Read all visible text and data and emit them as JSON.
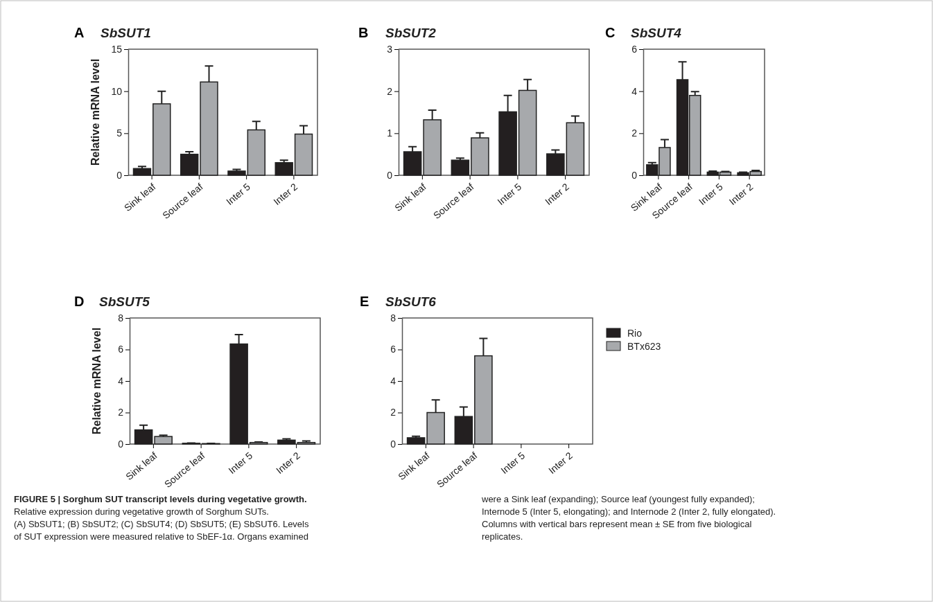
{
  "chart_data": [
    {
      "type": "bar",
      "title": "SbSUT1",
      "ylabel": "Relative mRNA level",
      "annotations": [
        "A"
      ],
      "categories": [
        "Sink leaf",
        "Source leaf",
        "Inter 5",
        "Inter 2"
      ],
      "ylim": [
        0,
        15
      ],
      "yticks": [
        0,
        5,
        10,
        15
      ],
      "grid": false,
      "legend": false,
      "series": [
        {
          "color": "#231f20",
          "values": [
            0.8,
            2.5,
            0.5,
            1.5
          ],
          "errors": [
            0.25,
            0.3,
            0.2,
            0.3
          ]
        },
        {
          "color": "#a7a9ac",
          "values": [
            8.5,
            11.1,
            5.4,
            4.9
          ],
          "errors": [
            1.5,
            1.9,
            1.0,
            1.0
          ]
        }
      ]
    },
    {
      "type": "bar",
      "title": "SbSUT2",
      "annotations": [
        "B"
      ],
      "categories": [
        "Sink leaf",
        "Source leaf",
        "Inter 5",
        "Inter 2"
      ],
      "ylim": [
        0,
        3
      ],
      "yticks": [
        0,
        1,
        2,
        3
      ],
      "grid": false,
      "legend": false,
      "series": [
        {
          "color": "#231f20",
          "values": [
            0.56,
            0.36,
            1.51,
            0.51
          ],
          "errors": [
            0.12,
            0.05,
            0.39,
            0.09
          ]
        },
        {
          "color": "#a7a9ac",
          "values": [
            1.32,
            0.89,
            2.02,
            1.25
          ],
          "errors": [
            0.23,
            0.12,
            0.26,
            0.16
          ]
        }
      ]
    },
    {
      "type": "bar",
      "title": "SbSUT4",
      "annotations": [
        "C"
      ],
      "categories": [
        "Sink leaf",
        "Source leaf",
        "Inter 5",
        "Inter 2"
      ],
      "ylim": [
        0,
        6
      ],
      "yticks": [
        0,
        2,
        4,
        6
      ],
      "grid": false,
      "legend": false,
      "series": [
        {
          "color": "#231f20",
          "values": [
            0.5,
            4.55,
            0.15,
            0.12
          ],
          "errors": [
            0.1,
            0.85,
            0.05,
            0.03
          ]
        },
        {
          "color": "#a7a9ac",
          "values": [
            1.32,
            3.8,
            0.15,
            0.18
          ],
          "errors": [
            0.38,
            0.18,
            0.03,
            0.05
          ]
        }
      ]
    },
    {
      "type": "bar",
      "title": "SbSUT5",
      "ylabel": "Relative mRNA level",
      "annotations": [
        "D"
      ],
      "categories": [
        "Sink leaf",
        "Source leaf",
        "Inter 5",
        "Inter 2"
      ],
      "ylim": [
        0,
        8
      ],
      "yticks": [
        0,
        2,
        4,
        6,
        8
      ],
      "grid": false,
      "legend": false,
      "series": [
        {
          "color": "#231f20",
          "values": [
            0.9,
            0.05,
            6.35,
            0.25
          ],
          "errors": [
            0.3,
            0.02,
            0.6,
            0.08
          ]
        },
        {
          "color": "#a7a9ac",
          "values": [
            0.48,
            0.03,
            0.1,
            0.1
          ],
          "errors": [
            0.08,
            0.01,
            0.03,
            0.1
          ]
        }
      ]
    },
    {
      "type": "bar",
      "title": "SbSUT6",
      "annotations": [
        "E",
        "FIGURE 5 | Sorghum SUT transcript levels during vegetative growth.",
        "Relative expression during vegetative growth of Sorghum SUTs.",
        "(A) SbSUT1; (B) SbSUT2; (C) SbSUT4; (D) SbSUT5; (E) SbSUT6. Levels",
        "of SUT expression were measured relative to SbEF-1α. Organs examined",
        "were a Sink leaf (expanding); Source leaf (youngest fully expanded);",
        "Internode 5 (Inter 5, elongating); and Internode 2 (Inter 2, fully elongated).",
        "Columns with vertical bars represent mean ± SE from five biological",
        "replicates."
      ],
      "categories": [
        "Sink leaf",
        "Source leaf",
        "Inter 5",
        "Inter 2"
      ],
      "ylim": [
        0,
        8
      ],
      "yticks": [
        0,
        2,
        4,
        6,
        8
      ],
      "grid": false,
      "legend": "right",
      "series": [
        {
          "name": "Rio",
          "color": "#231f20",
          "values": [
            0.4,
            1.75,
            null,
            null
          ],
          "errors": [
            0.1,
            0.6,
            null,
            null
          ]
        },
        {
          "name": "BTx623",
          "color": "#a7a9ac",
          "values": [
            2.0,
            5.6,
            null,
            null
          ],
          "errors": [
            0.8,
            1.1,
            null,
            null
          ]
        }
      ]
    }
  ]
}
